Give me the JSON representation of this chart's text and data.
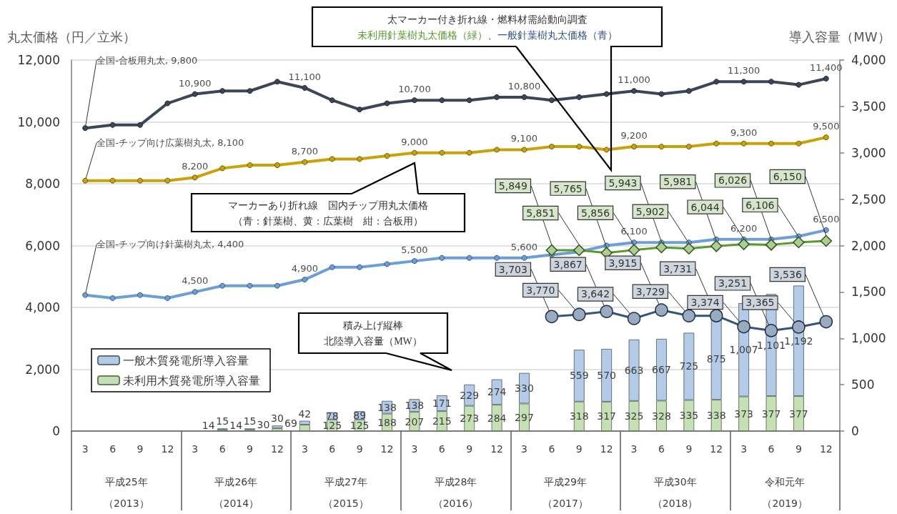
{
  "chart_data": {
    "type": "line",
    "ylabel": "丸太価格（円／立米）",
    "y2label": "導入容量（MW）",
    "categories": [
      "3",
      "6",
      "9",
      "12",
      "3",
      "6",
      "9",
      "12",
      "3",
      "6",
      "9",
      "12",
      "3",
      "6",
      "9",
      "12",
      "3",
      "6",
      "9",
      "12",
      "3",
      "6",
      "9",
      "12",
      "3",
      "6",
      "9",
      "12"
    ],
    "annotations": [
      "太マーカー付き折れ線・燃料材需給動向調査",
      "、",
      "マーカーあり折れ線　国内チップ用丸太価格（青：針葉樹、黄：広葉樹　紺：合板用）",
      "積み上げ縦棒北陸導入容量（MW）",
      "平成25年（2013）",
      "平成26年（2014）",
      "平成27年（2015）",
      "平成28年（2016）",
      "平成29年（2017）",
      "平成30年（2018）",
      "令和元年（2019）"
    ],
    "ylim": [
      0,
      12000
    ],
    "yticks": [
      0,
      {
        "value": 2000,
        "label": "2,000"
      },
      {
        "value": 4000,
        "label": "4,000"
      },
      {
        "value": 6000,
        "label": "6,000"
      },
      {
        "value": 8000,
        "label": "8,000"
      },
      {
        "value": 10000,
        "label": "10,000"
      },
      {
        "value": 12000,
        "label": "12,000"
      }
    ],
    "y2lim": [
      0,
      4000
    ],
    "y2ticks": [
      0,
      500,
      {
        "value": 1000,
        "label": "1,000"
      },
      {
        "value": 1500,
        "label": "1,500"
      },
      {
        "value": 2000,
        "label": "2,000"
      },
      {
        "value": 2500,
        "label": "2,500"
      },
      {
        "value": 3000,
        "label": "3,000"
      },
      {
        "value": 3500,
        "label": "3,500"
      },
      {
        "value": 4000,
        "label": "4,000"
      }
    ],
    "grid": "y",
    "legend": "bottom left",
    "stacked": true,
    "series": [
      {
        "name": "未利用木質発電所導入容量",
        "type": "bar",
        "axis": "y2",
        "color": "#c5e0b4",
        "values": [
          null,
          null,
          null,
          null,
          null,
          14,
          14,
          30,
          69,
          125,
          125,
          188,
          207,
          215,
          273,
          284,
          297,
          null,
          318,
          317,
          325,
          328,
          335,
          338,
          373,
          377,
          377,
          null
        ],
        "value_labels": [
          null,
          null,
          null,
          null,
          null,
          "14",
          "14",
          "30",
          "69",
          "125",
          "125",
          "188",
          "207",
          "215",
          "273",
          "284",
          "297",
          null,
          "318",
          "317",
          "325",
          "328",
          "335",
          "338",
          "373",
          "377",
          "377",
          null
        ]
      },
      {
        "name": "一般木質発電所導入容量",
        "type": "bar",
        "axis": "y2",
        "color": "#b4cbe8",
        "values": [
          null,
          null,
          null,
          null,
          null,
          15,
          15,
          30,
          42,
          78,
          89,
          138,
          138,
          171,
          229,
          274,
          330,
          null,
          559,
          570,
          663,
          667,
          725,
          875,
          1007,
          1101,
          1192,
          null
        ],
        "value_labels": [
          null,
          null,
          null,
          null,
          null,
          "15",
          "15",
          "30",
          "42",
          "78",
          "89",
          "138",
          "138",
          "171",
          "229",
          "274",
          "330",
          null,
          "559",
          "570",
          "663",
          "667",
          "725",
          "875",
          "1,007",
          "1,101",
          "1,192",
          null
        ]
      },
      {
        "color": "#3b4657",
        "marker": "circle",
        "values": [
          9800,
          9900,
          9900,
          10600,
          10900,
          11000,
          11000,
          11300,
          11100,
          10700,
          10400,
          10600,
          10700,
          10700,
          10700,
          10800,
          10800,
          10700,
          10800,
          10900,
          11000,
          10900,
          11000,
          11300,
          11300,
          11300,
          11200,
          11400
        ],
        "value_labels": [
          "全国-合板用丸太, 9,800",
          null,
          null,
          null,
          "10,900",
          null,
          null,
          null,
          "11,100",
          null,
          null,
          null,
          "10,700",
          null,
          null,
          null,
          "10,800",
          null,
          null,
          null,
          "11,000",
          null,
          null,
          null,
          "11,300",
          null,
          null,
          "11,400"
        ]
      },
      {
        "color": "#c9a20a",
        "marker": "circle",
        "values": [
          8100,
          8100,
          8100,
          8100,
          8200,
          8500,
          8600,
          8600,
          8700,
          8800,
          8800,
          8900,
          9000,
          9000,
          9000,
          9100,
          9100,
          9200,
          9200,
          9100,
          9200,
          9200,
          9200,
          9300,
          9300,
          9300,
          9300,
          9500
        ],
        "value_labels": [
          "全国-チップ向け広葉樹丸太, 8,100",
          null,
          null,
          null,
          "8,200",
          null,
          null,
          null,
          "8,700",
          null,
          null,
          null,
          "9,000",
          null,
          null,
          null,
          "9,100",
          null,
          null,
          null,
          "9,200",
          null,
          null,
          null,
          "9,300",
          null,
          null,
          "9,500"
        ]
      },
      {
        "color": "#6d9fd6",
        "marker": "circle",
        "values": [
          4400,
          4300,
          4400,
          4300,
          4500,
          4700,
          4700,
          4700,
          4900,
          5300,
          5300,
          5400,
          5500,
          5600,
          5600,
          5600,
          5600,
          5700,
          5800,
          6000,
          6100,
          6100,
          6100,
          6200,
          6200,
          6200,
          6300,
          6500
        ],
        "value_labels": [
          "全国-チップ向け針葉樹丸太, 4,400",
          null,
          null,
          null,
          "4,500",
          null,
          null,
          null,
          "4,900",
          null,
          null,
          null,
          "5,500",
          null,
          null,
          null,
          "5,600",
          null,
          null,
          null,
          "6,100",
          null,
          null,
          null,
          "6,200",
          null,
          null,
          "6,500"
        ]
      },
      {
        "name": "未利用針葉樹丸太価格（緑）",
        "color": "#5a9a2e",
        "marker": "diamond",
        "values": [
          null,
          null,
          null,
          null,
          null,
          null,
          null,
          null,
          null,
          null,
          null,
          null,
          null,
          null,
          null,
          null,
          null,
          5849,
          5851,
          5765,
          5856,
          5943,
          5902,
          5981,
          6044,
          6026,
          6106,
          6150
        ],
        "value_labels": [
          null,
          null,
          null,
          null,
          null,
          null,
          null,
          null,
          null,
          null,
          null,
          null,
          null,
          null,
          null,
          null,
          null,
          "5,849",
          "5,851",
          "5,765",
          "5,856",
          "5,943",
          "5,902",
          "5,981",
          "6,044",
          "6,026",
          "6,106",
          "6,150"
        ]
      },
      {
        "name": "一般針葉樹丸太価格（青）",
        "color": "#34547f",
        "marker": "circle",
        "values": [
          null,
          null,
          null,
          null,
          null,
          null,
          null,
          null,
          null,
          null,
          null,
          null,
          null,
          null,
          null,
          null,
          null,
          3703,
          3770,
          3867,
          3642,
          3915,
          3729,
          3731,
          3374,
          3251,
          3365,
          3536
        ],
        "value_labels": [
          null,
          null,
          null,
          null,
          null,
          null,
          null,
          null,
          null,
          null,
          null,
          null,
          null,
          null,
          null,
          null,
          null,
          "3,703",
          "3,770",
          "3,867",
          "3,642",
          "3,915",
          "3,729",
          "3,731",
          "3,374",
          "3,251",
          "3,365",
          "3,536"
        ]
      }
    ]
  }
}
